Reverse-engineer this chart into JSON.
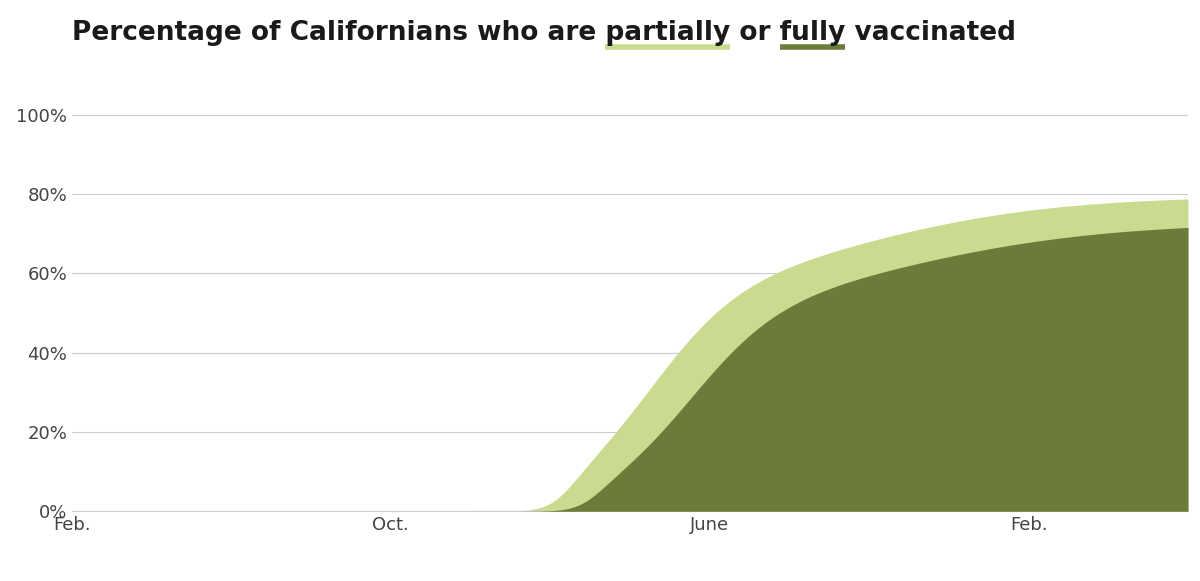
{
  "title_prefix": "Percentage of Californians who are ",
  "title_partially": "partially",
  "title_middle": " or ",
  "title_fully": "fully",
  "title_suffix": " vaccinated",
  "partially_color": "#c8db8e",
  "fully_color": "#6b7c3a",
  "background_color": "#ffffff",
  "yticks": [
    0,
    20,
    40,
    60,
    80,
    100
  ],
  "ytick_labels": [
    "0%",
    "20%",
    "40%",
    "60%",
    "80%",
    "100%"
  ],
  "xtick_labels": [
    "Feb.",
    "Oct.",
    "June",
    "Feb."
  ],
  "xtick_positions_months": [
    0,
    8,
    16,
    24
  ],
  "grid_color": "#cccccc",
  "tick_label_color": "#444444",
  "title_color": "#1a1a1a",
  "title_fontsize": 19,
  "tick_fontsize": 13,
  "partial_final": 78.8,
  "full_final": 71.6,
  "total_months": 28
}
